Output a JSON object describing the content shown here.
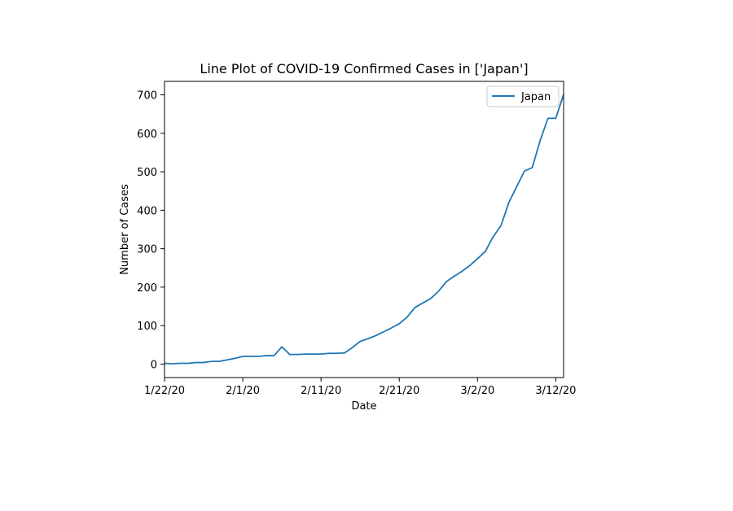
{
  "chart_data": {
    "type": "line",
    "title": "Line Plot of COVID-19 Confirmed Cases in ['Japan']",
    "xlabel": "Date",
    "ylabel": "Number of Cases",
    "x_tick_labels": [
      "1/22/20",
      "2/1/20",
      "2/11/20",
      "2/21/20",
      "3/2/20",
      "3/12/20"
    ],
    "y_ticks": [
      0,
      100,
      200,
      300,
      400,
      500,
      600,
      700
    ],
    "xlim": [
      "1/22/20",
      "3/13/20"
    ],
    "ylim": [
      -35,
      735
    ],
    "grid": false,
    "legend_position": "top-right",
    "line_color": "#1f77b4",
    "series": [
      {
        "name": "Japan",
        "x": [
          "1/22/20",
          "1/23/20",
          "1/24/20",
          "1/25/20",
          "1/26/20",
          "1/27/20",
          "1/28/20",
          "1/29/20",
          "1/30/20",
          "1/31/20",
          "2/1/20",
          "2/2/20",
          "2/3/20",
          "2/4/20",
          "2/5/20",
          "2/6/20",
          "2/7/20",
          "2/8/20",
          "2/9/20",
          "2/10/20",
          "2/11/20",
          "2/12/20",
          "2/13/20",
          "2/14/20",
          "2/15/20",
          "2/16/20",
          "2/17/20",
          "2/18/20",
          "2/19/20",
          "2/20/20",
          "2/21/20",
          "2/22/20",
          "2/23/20",
          "2/24/20",
          "2/25/20",
          "2/26/20",
          "2/27/20",
          "2/28/20",
          "2/29/20",
          "3/1/20",
          "3/2/20",
          "3/3/20",
          "3/4/20",
          "3/5/20",
          "3/6/20",
          "3/7/20",
          "3/8/20",
          "3/9/20",
          "3/10/20",
          "3/11/20",
          "3/12/20",
          "3/13/20"
        ],
        "values": [
          2,
          1,
          2,
          2,
          4,
          4,
          7,
          7,
          11,
          15,
          20,
          20,
          20,
          22,
          22,
          45,
          25,
          25,
          26,
          26,
          26,
          28,
          28,
          29,
          43,
          59,
          66,
          74,
          84,
          94,
          105,
          122,
          147,
          159,
          170,
          189,
          214,
          228,
          241,
          256,
          274,
          293,
          331,
          360,
          420,
          461,
          502,
          511,
          581,
          639,
          639,
          701
        ]
      }
    ]
  }
}
